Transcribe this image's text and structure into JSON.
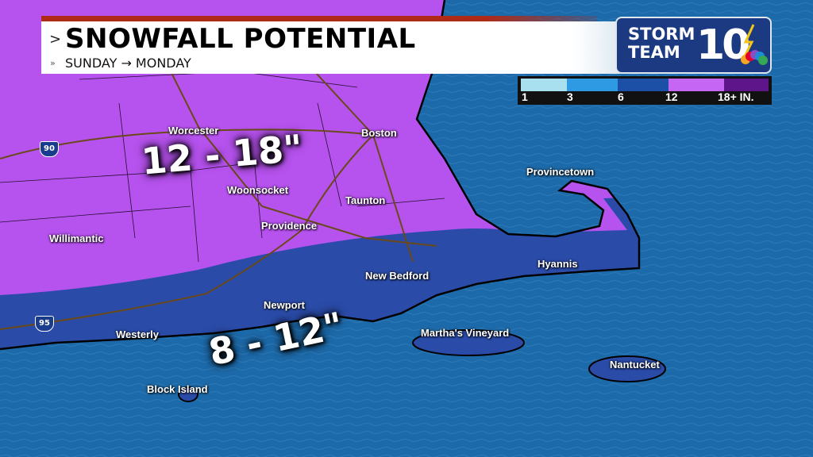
{
  "header": {
    "title": "SNOWFALL POTENTIAL",
    "subtitle": "SUNDAY → MONDAY",
    "title_chevron": ">",
    "subtitle_chevron": "»"
  },
  "logo": {
    "text_line1": "STORM",
    "text_line2": "TEAM",
    "number": "10"
  },
  "legend": {
    "labels": [
      "1",
      "3",
      "6",
      "12",
      "18+ IN."
    ],
    "colors": [
      "#a8e0f0",
      "#2e9ae4",
      "#1c4fa6",
      "#c566f5",
      "#5e1589"
    ]
  },
  "map": {
    "zones": [
      {
        "label": "12 - 18\"",
        "color": "#b652ee"
      },
      {
        "label": "8 - 12\"",
        "color": "#2a4ba8"
      }
    ],
    "cities": [
      "Worcester",
      "Boston",
      "Woonsocket",
      "Taunton",
      "Providence",
      "Willimantic",
      "New Bedford",
      "Newport",
      "Westerly",
      "Hyannis",
      "Provincetown",
      "Martha's Vineyard",
      "Nantucket",
      "Block Island"
    ],
    "highways": [
      "90",
      "95"
    ],
    "ocean_color": "#1d6aaa"
  }
}
